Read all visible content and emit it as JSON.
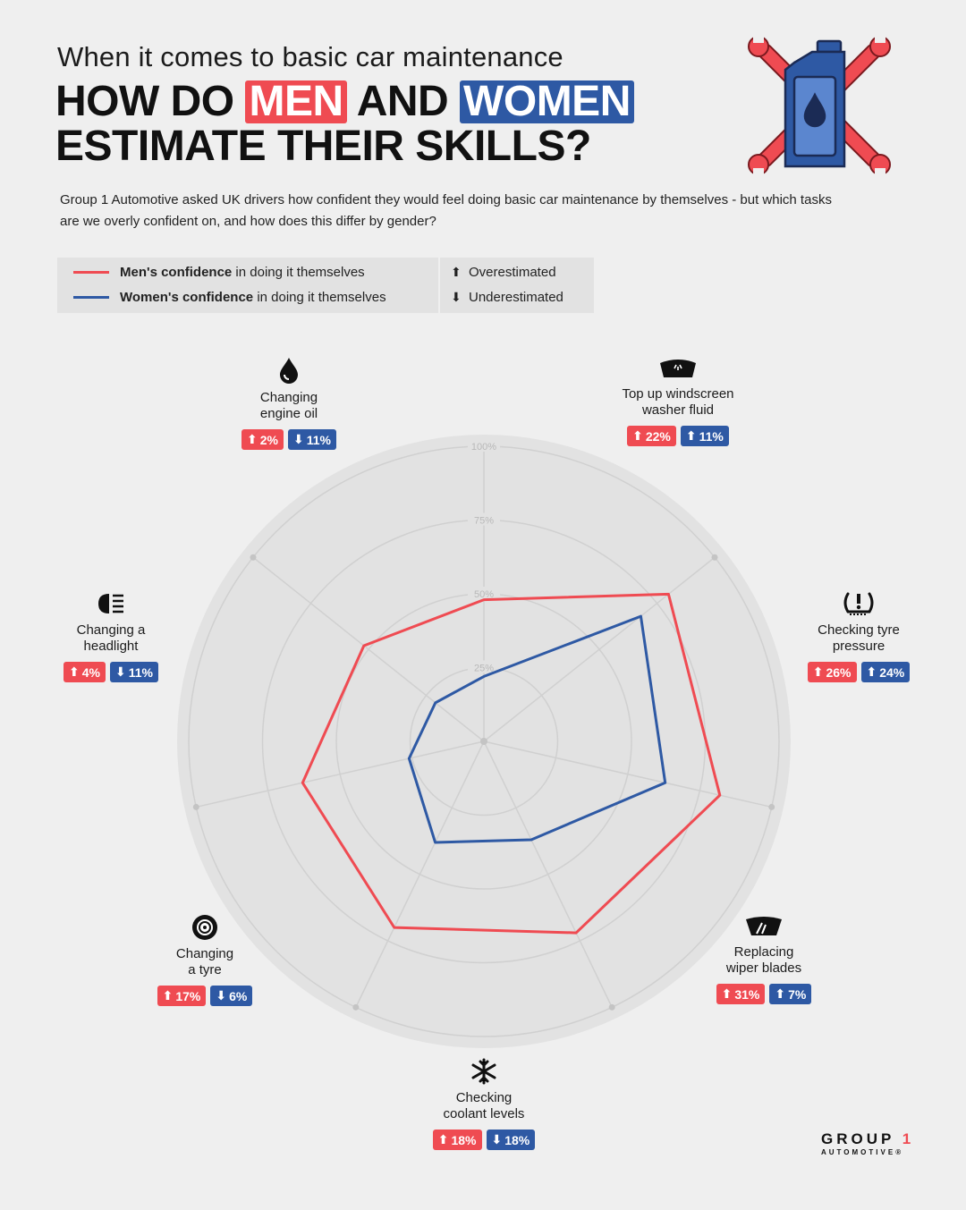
{
  "header": {
    "subtitle": "When it comes to basic car maintenance",
    "line1_a": "HOW DO ",
    "line1_men": "MEN",
    "line1_b": " AND ",
    "line1_women": "WOMEN",
    "line2": "ESTIMATE THEIR SKILLS?"
  },
  "intro": "Group 1 Automotive asked UK drivers how confident they would feel doing basic car maintenance by themselves - but which tasks are we overly confident on, and how does this differ by gender?",
  "legend": {
    "men_bold": "Men's confidence",
    "men_rest": " in doing it themselves",
    "women_bold": "Women's confidence",
    "women_rest": " in doing it themselves",
    "over": "Overestimated",
    "under": "Underestimated"
  },
  "colors": {
    "men": "#ef4b52",
    "women": "#2e59a4"
  },
  "chart_data": {
    "type": "radar",
    "categories": [
      "Changing engine oil",
      "Top up windscreen washer fluid",
      "Checking tyre pressure",
      "Replacing wiper blades",
      "Checking coolant levels",
      "Changing a tyre",
      "Changing a headlight"
    ],
    "rlim": [
      0,
      100
    ],
    "ticks": [
      "25%",
      "50%",
      "75%",
      "100%"
    ],
    "series": [
      {
        "name": "Men's confidence in doing it themselves",
        "values": [
          48,
          80,
          82,
          72,
          70,
          63,
          52
        ]
      },
      {
        "name": "Women's confidence in doing it themselves",
        "values": [
          22,
          68,
          63,
          37,
          38,
          26,
          21
        ]
      }
    ]
  },
  "categories": [
    {
      "label": "Changing\nengine oil",
      "icon": "oil-drop-icon",
      "men": "2%",
      "men_dir": "up",
      "women": "11%",
      "women_dir": "down"
    },
    {
      "label": "Top up windscreen\nwasher fluid",
      "icon": "washer-fluid-icon",
      "men": "22%",
      "men_dir": "up",
      "women": "11%",
      "women_dir": "up"
    },
    {
      "label": "Checking tyre\npressure",
      "icon": "tyre-pressure-warning-icon",
      "men": "26%",
      "men_dir": "up",
      "women": "24%",
      "women_dir": "up"
    },
    {
      "label": "Replacing\nwiper blades",
      "icon": "wiper-icon",
      "men": "31%",
      "men_dir": "up",
      "women": "7%",
      "women_dir": "up"
    },
    {
      "label": "Checking\ncoolant levels",
      "icon": "snowflake-icon",
      "men": "18%",
      "men_dir": "up",
      "women": "18%",
      "women_dir": "down"
    },
    {
      "label": "Changing\na tyre",
      "icon": "tyre-icon",
      "men": "17%",
      "men_dir": "up",
      "women": "6%",
      "women_dir": "down"
    },
    {
      "label": "Changing a\nheadlight",
      "icon": "headlight-icon",
      "men": "4%",
      "men_dir": "up",
      "women": "11%",
      "women_dir": "down"
    }
  ],
  "logo": {
    "name_a": "GROUP ",
    "name_b": "1",
    "sub": "AUTOMOTIVE®"
  }
}
